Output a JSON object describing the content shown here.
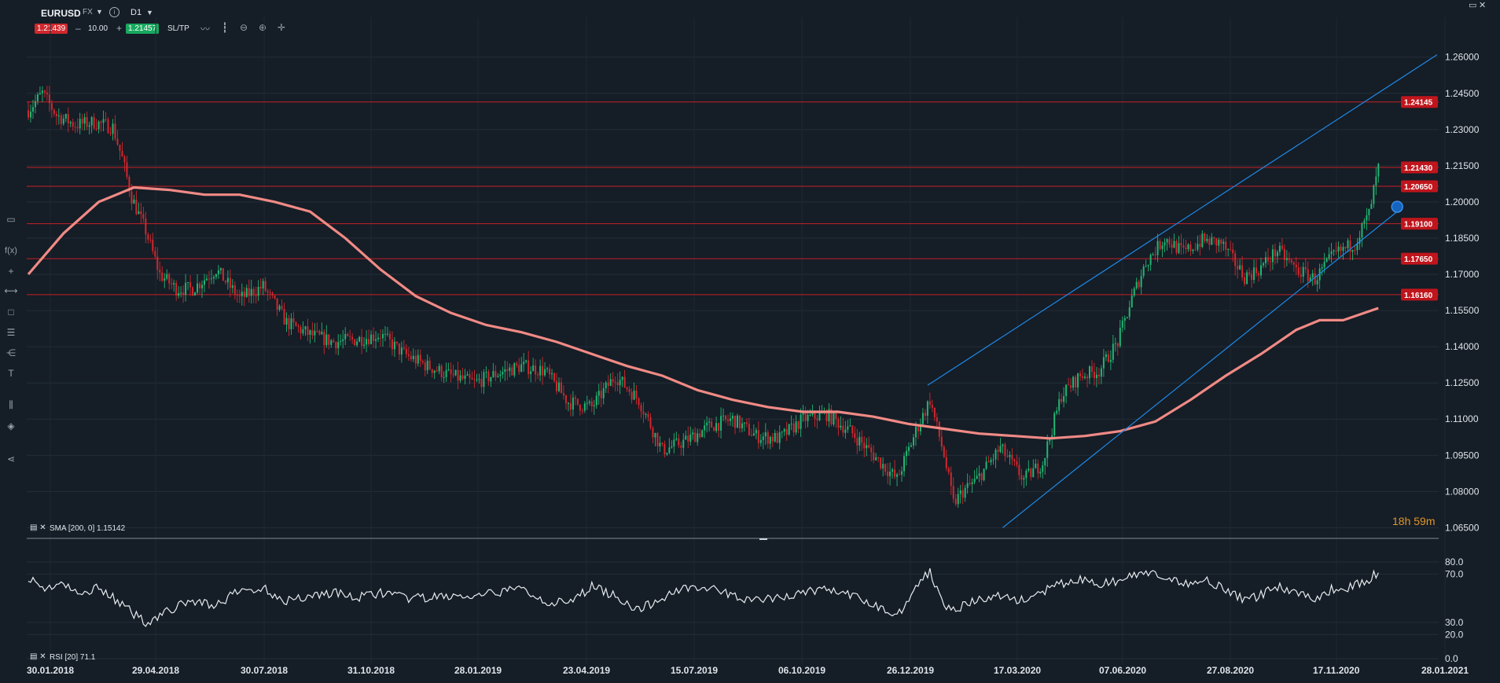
{
  "header": {
    "symbol": "EURUSD",
    "market": "FX",
    "timeframe": "D1",
    "bid": "1.21439",
    "ask": "1.21457",
    "quantity": "10.00",
    "minus": "–",
    "plus": "+",
    "sltp_label": "SL/TP"
  },
  "indicators": {
    "sma_label": "SMA [200, 0] 1.15142",
    "rsi_label": "RSI [20] 71.1"
  },
  "timer": "18h 59m",
  "icons": [
    "caret-down-icon",
    "info-icon",
    "line-chart-icon",
    "candles-icon",
    "zoom-out-icon",
    "zoom-in-icon",
    "crosshair-icon",
    "window-icon",
    "close-icon",
    "screen-icon",
    "function-icon",
    "plus-icon",
    "horizontal-line-icon",
    "rectangle-icon",
    "fibonacci-icon",
    "pitchfork-icon",
    "text-icon",
    "bars-icon",
    "layers-icon",
    "share-icon"
  ],
  "colors": {
    "background": "#151d26",
    "bullish": "#22b573",
    "bearish": "#d0282e",
    "sma": "#f08a85",
    "channel": "#1e88e5",
    "level": "#c62026",
    "rsi": "#e8ecef",
    "timer": "#e0962c"
  },
  "chart_data": [
    {
      "type": "candlestick",
      "title": "EURUSD",
      "y_ticks": [
        "1.26000",
        "1.24500",
        "1.23000",
        "1.21500",
        "1.20000",
        "1.18500",
        "1.17000",
        "1.15500",
        "1.14000",
        "1.12500",
        "1.11000",
        "1.09500",
        "1.08000",
        "1.06500"
      ],
      "ylim": [
        1.0635,
        1.2635
      ],
      "x_ticks": [
        "30.01.2018",
        "29.04.2018",
        "30.07.2018",
        "31.10.2018",
        "28.01.2019",
        "23.04.2019",
        "15.07.2019",
        "06.10.2019",
        "26.12.2019",
        "17.03.2020",
        "07.06.2020",
        "27.08.2020",
        "17.11.2020",
        "28.01.2021"
      ],
      "horizontal_levels": [
        "1.24145",
        "1.21430",
        "1.20650",
        "1.19100",
        "1.17650",
        "1.16160"
      ],
      "price_path": [
        [
          0,
          1.238
        ],
        [
          6,
          1.245
        ],
        [
          12,
          1.236
        ],
        [
          20,
          1.232
        ],
        [
          28,
          1.233
        ],
        [
          36,
          1.231
        ],
        [
          40,
          1.218
        ],
        [
          44,
          1.202
        ],
        [
          50,
          1.188
        ],
        [
          56,
          1.17
        ],
        [
          63,
          1.164
        ],
        [
          70,
          1.164
        ],
        [
          80,
          1.172
        ],
        [
          90,
          1.16
        ],
        [
          100,
          1.165
        ],
        [
          110,
          1.15
        ],
        [
          120,
          1.145
        ],
        [
          130,
          1.142
        ],
        [
          140,
          1.143
        ],
        [
          150,
          1.145
        ],
        [
          160,
          1.137
        ],
        [
          170,
          1.132
        ],
        [
          180,
          1.128
        ],
        [
          190,
          1.125
        ],
        [
          200,
          1.129
        ],
        [
          210,
          1.132
        ],
        [
          220,
          1.13
        ],
        [
          230,
          1.117
        ],
        [
          240,
          1.115
        ],
        [
          250,
          1.128
        ],
        [
          260,
          1.118
        ],
        [
          270,
          1.097
        ],
        [
          280,
          1.101
        ],
        [
          290,
          1.107
        ],
        [
          300,
          1.11
        ],
        [
          310,
          1.103
        ],
        [
          320,
          1.102
        ],
        [
          330,
          1.11
        ],
        [
          340,
          1.112
        ],
        [
          350,
          1.105
        ],
        [
          360,
          1.095
        ],
        [
          370,
          1.085
        ],
        [
          378,
          1.105
        ],
        [
          384,
          1.118
        ],
        [
          390,
          1.095
        ],
        [
          394,
          1.075
        ],
        [
          398,
          1.08
        ],
        [
          404,
          1.085
        ],
        [
          414,
          1.098
        ],
        [
          424,
          1.085
        ],
        [
          432,
          1.092
        ],
        [
          440,
          1.12
        ],
        [
          448,
          1.128
        ],
        [
          456,
          1.13
        ],
        [
          464,
          1.142
        ],
        [
          470,
          1.16
        ],
        [
          476,
          1.175
        ],
        [
          484,
          1.185
        ],
        [
          492,
          1.179
        ],
        [
          500,
          1.184
        ],
        [
          508,
          1.183
        ],
        [
          518,
          1.169
        ],
        [
          524,
          1.172
        ],
        [
          532,
          1.18
        ],
        [
          540,
          1.172
        ],
        [
          548,
          1.168
        ],
        [
          556,
          1.178
        ],
        [
          565,
          1.183
        ],
        [
          571,
          1.195
        ],
        [
          575,
          1.214
        ]
      ],
      "sma": {
        "name": "SMA [200, 0]",
        "value": 1.15142,
        "path": [
          [
            0,
            1.17
          ],
          [
            15,
            1.187
          ],
          [
            30,
            1.2
          ],
          [
            45,
            1.206
          ],
          [
            60,
            1.205
          ],
          [
            75,
            1.203
          ],
          [
            90,
            1.203
          ],
          [
            105,
            1.2
          ],
          [
            120,
            1.196
          ],
          [
            135,
            1.185
          ],
          [
            150,
            1.172
          ],
          [
            165,
            1.161
          ],
          [
            180,
            1.154
          ],
          [
            195,
            1.149
          ],
          [
            210,
            1.146
          ],
          [
            225,
            1.142
          ],
          [
            240,
            1.137
          ],
          [
            255,
            1.132
          ],
          [
            270,
            1.128
          ],
          [
            285,
            1.122
          ],
          [
            300,
            1.118
          ],
          [
            315,
            1.115
          ],
          [
            330,
            1.113
          ],
          [
            345,
            1.113
          ],
          [
            360,
            1.111
          ],
          [
            375,
            1.108
          ],
          [
            390,
            1.106
          ],
          [
            405,
            1.104
          ],
          [
            420,
            1.103
          ],
          [
            435,
            1.102
          ],
          [
            450,
            1.103
          ],
          [
            465,
            1.105
          ],
          [
            480,
            1.109
          ],
          [
            495,
            1.118
          ],
          [
            510,
            1.128
          ],
          [
            525,
            1.137
          ],
          [
            540,
            1.147
          ],
          [
            550,
            1.151
          ],
          [
            560,
            1.151
          ],
          [
            575,
            1.156
          ]
        ]
      },
      "channel": [
        {
          "from": [
            383,
            1.124
          ],
          "to": [
            600,
            1.261
          ]
        },
        {
          "from": [
            415,
            1.065
          ],
          "to": [
            583,
            1.196
          ]
        }
      ],
      "current_marker": 1.198
    },
    {
      "type": "line",
      "title": "RSI [20]",
      "value": 71.1,
      "y_ticks": [
        "80.0",
        "70.0",
        "30.0",
        "20.0",
        "0.0"
      ],
      "ylim": [
        0,
        80
      ],
      "path": [
        [
          0,
          68
        ],
        [
          6,
          58
        ],
        [
          14,
          62
        ],
        [
          22,
          52
        ],
        [
          30,
          60
        ],
        [
          40,
          44
        ],
        [
          50,
          30
        ],
        [
          60,
          40
        ],
        [
          70,
          48
        ],
        [
          80,
          44
        ],
        [
          90,
          56
        ],
        [
          100,
          58
        ],
        [
          110,
          48
        ],
        [
          120,
          52
        ],
        [
          130,
          55
        ],
        [
          140,
          50
        ],
        [
          150,
          55
        ],
        [
          160,
          50
        ],
        [
          170,
          50
        ],
        [
          180,
          52
        ],
        [
          190,
          50
        ],
        [
          200,
          55
        ],
        [
          210,
          58
        ],
        [
          220,
          48
        ],
        [
          230,
          45
        ],
        [
          240,
          60
        ],
        [
          250,
          52
        ],
        [
          260,
          40
        ],
        [
          270,
          50
        ],
        [
          280,
          60
        ],
        [
          290,
          58
        ],
        [
          300,
          52
        ],
        [
          310,
          48
        ],
        [
          320,
          50
        ],
        [
          330,
          55
        ],
        [
          340,
          58
        ],
        [
          350,
          52
        ],
        [
          360,
          45
        ],
        [
          370,
          35
        ],
        [
          378,
          60
        ],
        [
          384,
          72
        ],
        [
          390,
          45
        ],
        [
          396,
          42
        ],
        [
          404,
          48
        ],
        [
          414,
          52
        ],
        [
          424,
          48
        ],
        [
          432,
          55
        ],
        [
          440,
          62
        ],
        [
          448,
          65
        ],
        [
          456,
          62
        ],
        [
          464,
          64
        ],
        [
          470,
          68
        ],
        [
          476,
          72
        ],
        [
          484,
          65
        ],
        [
          492,
          62
        ],
        [
          500,
          66
        ],
        [
          508,
          60
        ],
        [
          518,
          48
        ],
        [
          524,
          52
        ],
        [
          532,
          60
        ],
        [
          540,
          55
        ],
        [
          548,
          50
        ],
        [
          556,
          58
        ],
        [
          565,
          60
        ],
        [
          571,
          66
        ],
        [
          575,
          71.1
        ]
      ]
    }
  ]
}
